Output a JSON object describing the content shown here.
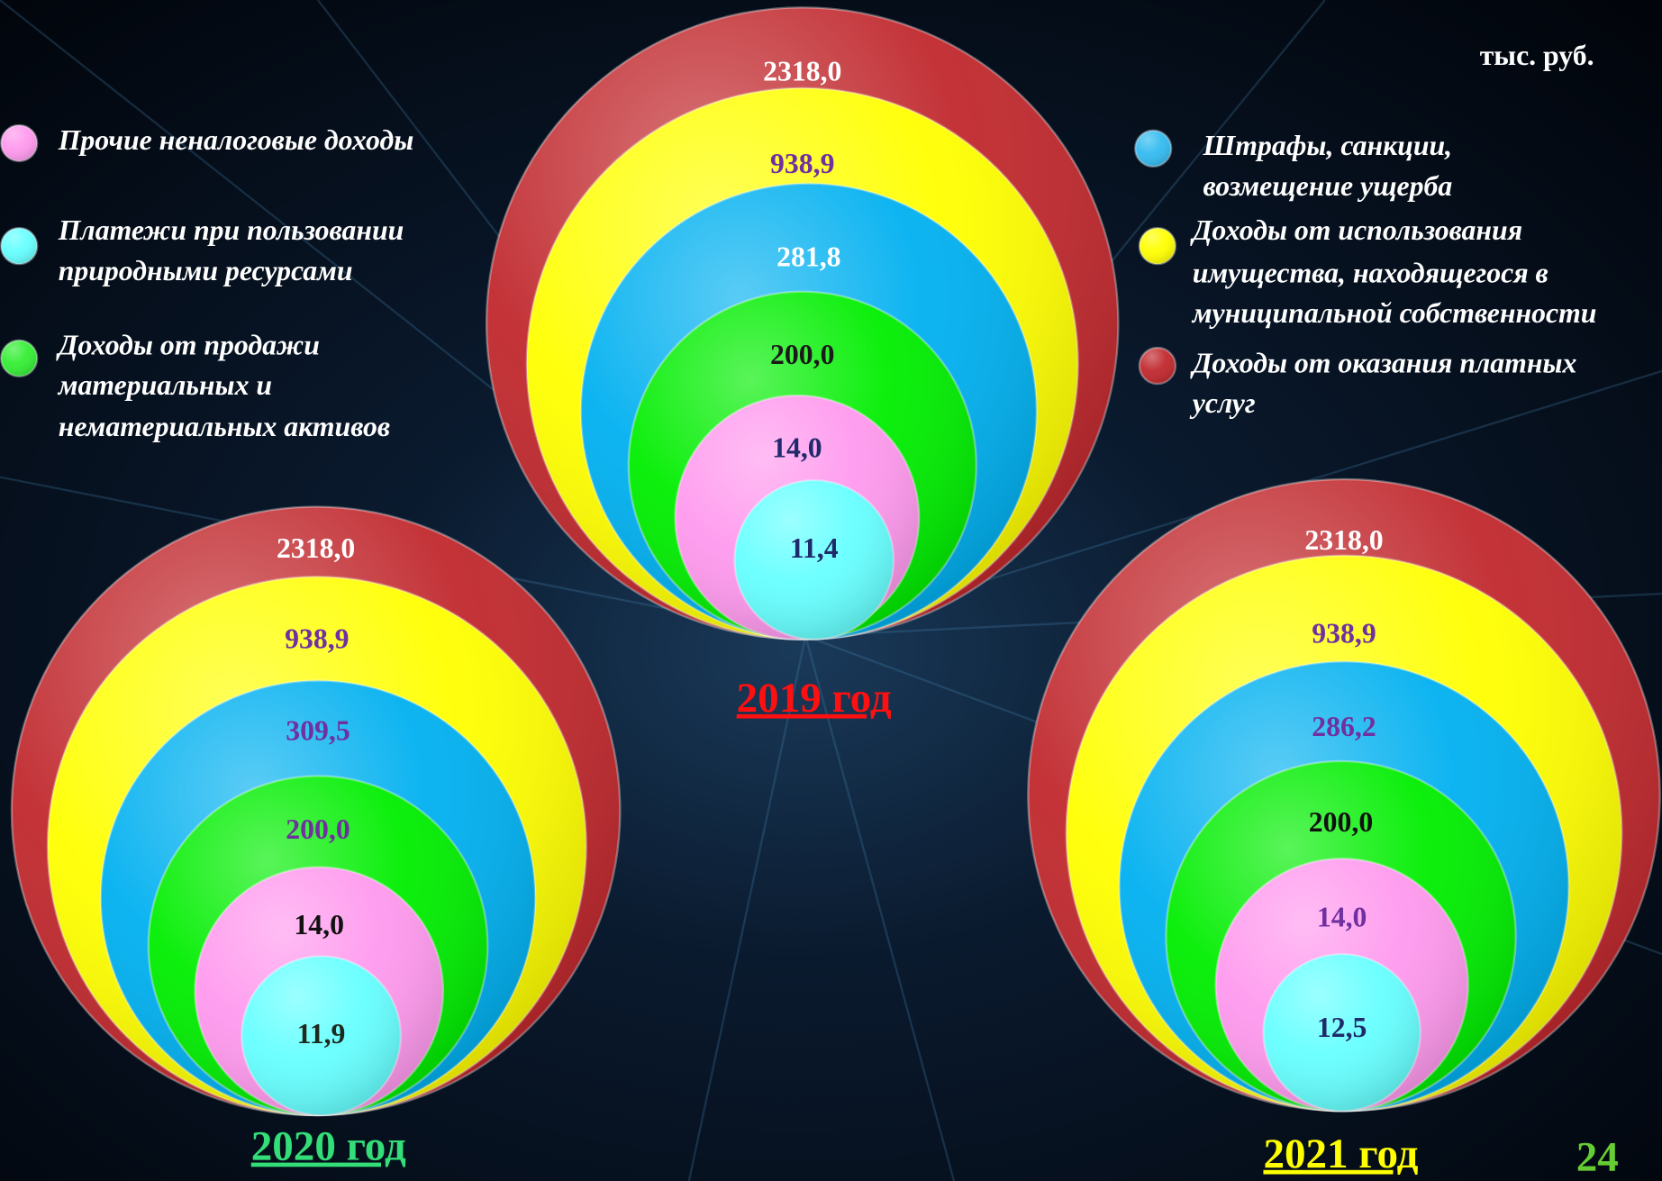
{
  "unit": "тыс. руб.",
  "page_number": "24",
  "legend": {
    "left": [
      {
        "label_lines": [
          "Прочие неналоговые доходы"
        ],
        "color": "#ff99ee"
      },
      {
        "label_lines": [
          "Платежи при пользовании",
          "природными ресурсами"
        ],
        "color": "#66ffff"
      },
      {
        "label_lines": [
          "Доходы от продажи",
          "материальных и",
          "нематериальных активов"
        ],
        "color": "#33ee33"
      }
    ],
    "right": [
      {
        "label_lines": [
          "Штрафы, санкции,",
          "возмещение ущерба"
        ],
        "color": "#33bbf0"
      },
      {
        "label_lines": [
          "Доходы от использования",
          "имущества, находящегося в",
          "муниципальной собственности"
        ],
        "color": "#ffff00"
      },
      {
        "label_lines": [
          "Доходы от оказания платных",
          "услуг"
        ],
        "color": "#c0282d"
      }
    ]
  },
  "diagrams": [
    {
      "year": "2019 год",
      "year_color": "#ff1010",
      "rings": [
        {
          "value": "2318,0",
          "color": "#c0282d",
          "label_color": "#ffffff"
        },
        {
          "value": "938,9",
          "color": "#ffff00",
          "label_color": "#7030a0"
        },
        {
          "value": "281,8",
          "color": "#00b0f0",
          "label_color": "#ffffff"
        },
        {
          "value": "200,0",
          "color": "#00ee00",
          "label_color": "#1a1a1a"
        },
        {
          "value": "14,0",
          "color": "#ff99ee",
          "label_color": "#1f2a6b"
        },
        {
          "value": "11,4",
          "color": "#66ffff",
          "label_color": "#1f2a6b"
        }
      ]
    },
    {
      "year": "2020 год",
      "year_color": "#33dd77",
      "rings": [
        {
          "value": "2318,0",
          "color": "#c0282d",
          "label_color": "#ffffff"
        },
        {
          "value": "938,9",
          "color": "#ffff00",
          "label_color": "#7030a0"
        },
        {
          "value": "309,5",
          "color": "#00b0f0",
          "label_color": "#7030a0"
        },
        {
          "value": "200,0",
          "color": "#00ee00",
          "label_color": "#7030a0"
        },
        {
          "value": "14,0",
          "color": "#ff99ee",
          "label_color": "#111111"
        },
        {
          "value": "11,9",
          "color": "#66ffff",
          "label_color": "#1f2a1f"
        }
      ]
    },
    {
      "year": "2021 год",
      "year_color": "#ffff00",
      "rings": [
        {
          "value": "2318,0",
          "color": "#c0282d",
          "label_color": "#ffffff"
        },
        {
          "value": "938,9",
          "color": "#ffff00",
          "label_color": "#7030a0"
        },
        {
          "value": "286,2",
          "color": "#00b0f0",
          "label_color": "#7030a0"
        },
        {
          "value": "200,0",
          "color": "#00ee00",
          "label_color": "#111111"
        },
        {
          "value": "14,0",
          "color": "#ff99ee",
          "label_color": "#7030a0"
        },
        {
          "value": "12,5",
          "color": "#66ffff",
          "label_color": "#1f2a6b"
        }
      ]
    }
  ]
}
